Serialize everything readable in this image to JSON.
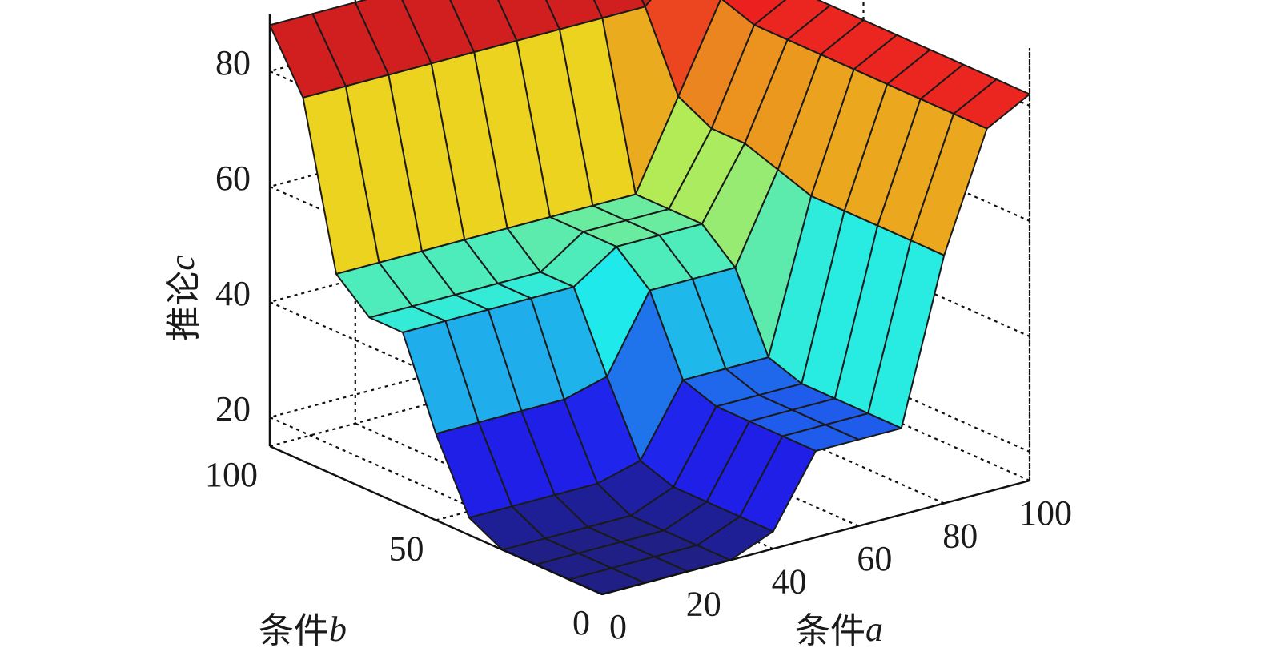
{
  "chart_data": {
    "type": "surface",
    "title": "",
    "xlabel": {
      "text": "条件",
      "var": "a"
    },
    "ylabel": {
      "text": "条件",
      "var": "b"
    },
    "zlabel": {
      "text": "推论",
      "var": "c"
    },
    "x_ticks": [
      "0",
      "20",
      "40",
      "60",
      "80",
      "100"
    ],
    "y_ticks": [
      "0",
      "50",
      "100"
    ],
    "z_ticks": [
      "20",
      "40",
      "60",
      "80"
    ],
    "xlim": [
      0,
      100
    ],
    "ylim": [
      0,
      100
    ],
    "zlim": [
      15,
      90
    ],
    "grid": true,
    "colormap": "jet",
    "grid_x": [
      0,
      10,
      20,
      30,
      40,
      50,
      60,
      70,
      80,
      90,
      100
    ],
    "grid_y": [
      0,
      10,
      20,
      30,
      40,
      50,
      60,
      70,
      80,
      90,
      100
    ],
    "z": [
      [
        15,
        15,
        15,
        15,
        18,
        30,
        30,
        30,
        58,
        78,
        82
      ],
      [
        15,
        15,
        15,
        15,
        18,
        30,
        30,
        30,
        58,
        78,
        82
      ],
      [
        15,
        15,
        15,
        15,
        18,
        30,
        30,
        30,
        58,
        78,
        82
      ],
      [
        15,
        15,
        15,
        15,
        18,
        30,
        30,
        30,
        58,
        78,
        82
      ],
      [
        18,
        18,
        18,
        18,
        20,
        32,
        32,
        32,
        58,
        78,
        82
      ],
      [
        30,
        30,
        30,
        30,
        32,
        45,
        45,
        45,
        60,
        78,
        82
      ],
      [
        45,
        45,
        45,
        45,
        45,
        50,
        50,
        50,
        62,
        78,
        82
      ],
      [
        45,
        45,
        45,
        45,
        45,
        50,
        50,
        50,
        62,
        78,
        82
      ],
      [
        50,
        50,
        50,
        50,
        50,
        50,
        50,
        50,
        65,
        80,
        82
      ],
      [
        78,
        78,
        78,
        78,
        78,
        78,
        78,
        78,
        78,
        85,
        88
      ],
      [
        88,
        88,
        88,
        88,
        88,
        88,
        88,
        88,
        88,
        88,
        88
      ]
    ]
  }
}
